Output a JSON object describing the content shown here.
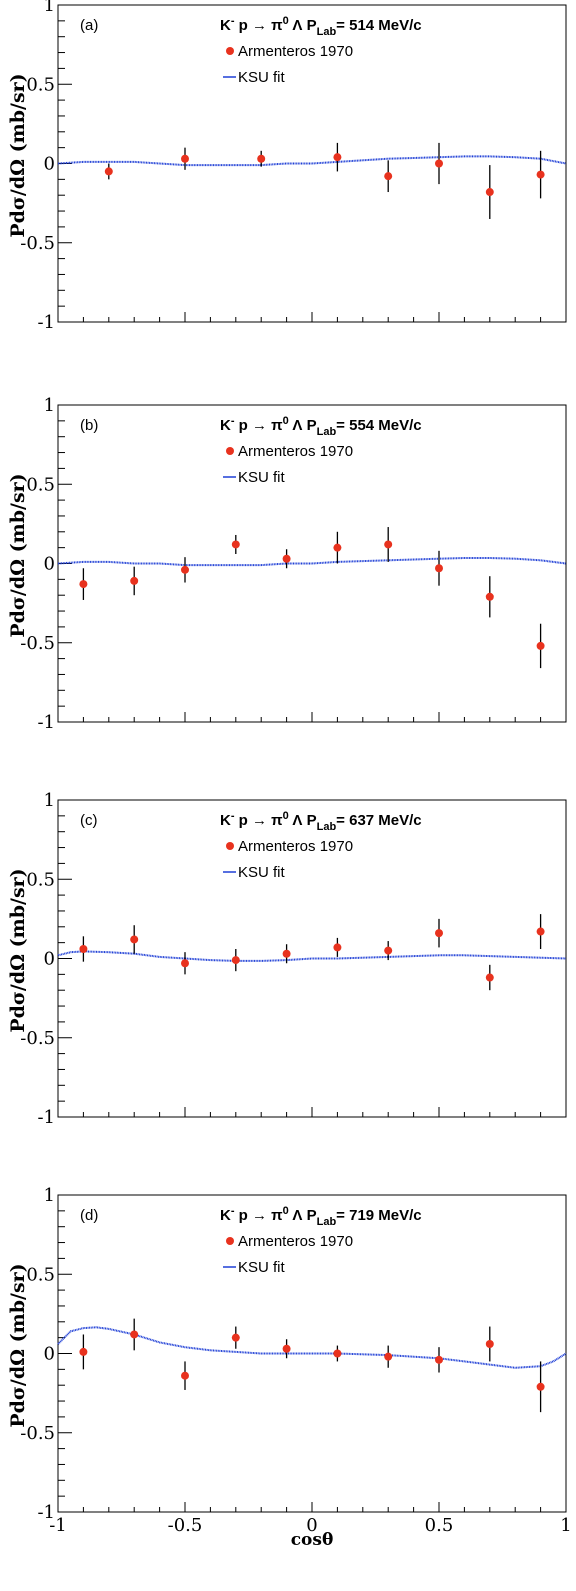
{
  "chart_data": [
    {
      "type": "scatter",
      "panel_label": "(a)",
      "reaction": {
        "lhs": "K",
        "sup": "-",
        "rest": " p → π",
        "pi_sup": "0",
        "tail": " Λ",
        "plab_label": "P",
        "plab_sub": "Lab",
        "plab_value": "= 514 MeV/c"
      },
      "ylabel": "Pdσ/dΩ (mb/sr)",
      "xlabel": "",
      "xlim": [
        -1,
        1
      ],
      "ylim": [
        -1,
        1
      ],
      "yticks": [
        {
          "v": -1,
          "label": "-1"
        },
        {
          "v": -0.5,
          "label": "-0.5"
        },
        {
          "v": 0,
          "label": "0"
        },
        {
          "v": 0.5,
          "label": "0.5"
        },
        {
          "v": 1,
          "label": "1"
        }
      ],
      "xticks": [],
      "legend": [
        {
          "name": "Armenteros 1970",
          "kind": "marker",
          "color": "#e8321e"
        },
        {
          "name": "KSU fit",
          "kind": "line",
          "color": "#1f3fd6"
        }
      ],
      "series": [
        {
          "name": "Armenteros 1970",
          "color": "#e8321e",
          "points": [
            {
              "x": -0.8,
              "y": -0.05,
              "err": 0.05
            },
            {
              "x": -0.5,
              "y": 0.03,
              "err": 0.07
            },
            {
              "x": -0.2,
              "y": 0.03,
              "err": 0.05
            },
            {
              "x": 0.1,
              "y": 0.04,
              "err": 0.09
            },
            {
              "x": 0.3,
              "y": -0.08,
              "err": 0.1
            },
            {
              "x": 0.5,
              "y": 0.0,
              "err": 0.13
            },
            {
              "x": 0.7,
              "y": -0.18,
              "err": 0.17
            },
            {
              "x": 0.9,
              "y": -0.07,
              "err": 0.15
            }
          ]
        },
        {
          "name": "KSU fit",
          "color": "#1f3fd6",
          "curve": [
            {
              "x": -1.0,
              "y": 0.0
            },
            {
              "x": -0.9,
              "y": 0.01
            },
            {
              "x": -0.8,
              "y": 0.01
            },
            {
              "x": -0.7,
              "y": 0.01
            },
            {
              "x": -0.6,
              "y": 0.0
            },
            {
              "x": -0.5,
              "y": -0.01
            },
            {
              "x": -0.4,
              "y": -0.01
            },
            {
              "x": -0.3,
              "y": -0.01
            },
            {
              "x": -0.2,
              "y": -0.01
            },
            {
              "x": -0.1,
              "y": 0.0
            },
            {
              "x": 0.0,
              "y": 0.0
            },
            {
              "x": 0.1,
              "y": 0.01
            },
            {
              "x": 0.2,
              "y": 0.02
            },
            {
              "x": 0.3,
              "y": 0.03
            },
            {
              "x": 0.4,
              "y": 0.035
            },
            {
              "x": 0.5,
              "y": 0.04
            },
            {
              "x": 0.6,
              "y": 0.045
            },
            {
              "x": 0.7,
              "y": 0.045
            },
            {
              "x": 0.8,
              "y": 0.04
            },
            {
              "x": 0.9,
              "y": 0.03
            },
            {
              "x": 1.0,
              "y": 0.0
            }
          ]
        }
      ]
    },
    {
      "type": "scatter",
      "panel_label": "(b)",
      "reaction": {
        "lhs": "K",
        "sup": "-",
        "rest": " p → π",
        "pi_sup": "0",
        "tail": " Λ",
        "plab_label": "P",
        "plab_sub": "Lab",
        "plab_value": "= 554 MeV/c"
      },
      "ylabel": "Pdσ/dΩ (mb/sr)",
      "xlabel": "",
      "xlim": [
        -1,
        1
      ],
      "ylim": [
        -1,
        1
      ],
      "yticks": [
        {
          "v": -1,
          "label": "-1"
        },
        {
          "v": -0.5,
          "label": "-0.5"
        },
        {
          "v": 0,
          "label": "0"
        },
        {
          "v": 0.5,
          "label": "0.5"
        },
        {
          "v": 1,
          "label": "1"
        }
      ],
      "xticks": [],
      "legend": [
        {
          "name": "Armenteros 1970",
          "kind": "marker",
          "color": "#e8321e"
        },
        {
          "name": "KSU fit",
          "kind": "line",
          "color": "#1f3fd6"
        }
      ],
      "series": [
        {
          "name": "Armenteros 1970",
          "color": "#e8321e",
          "points": [
            {
              "x": -0.9,
              "y": -0.13,
              "err": 0.1
            },
            {
              "x": -0.7,
              "y": -0.11,
              "err": 0.09
            },
            {
              "x": -0.5,
              "y": -0.04,
              "err": 0.08
            },
            {
              "x": -0.3,
              "y": 0.12,
              "err": 0.06
            },
            {
              "x": -0.1,
              "y": 0.03,
              "err": 0.06
            },
            {
              "x": 0.1,
              "y": 0.1,
              "err": 0.1
            },
            {
              "x": 0.3,
              "y": 0.12,
              "err": 0.11
            },
            {
              "x": 0.5,
              "y": -0.03,
              "err": 0.11
            },
            {
              "x": 0.7,
              "y": -0.21,
              "err": 0.13
            },
            {
              "x": 0.9,
              "y": -0.52,
              "err": 0.14
            }
          ]
        },
        {
          "name": "KSU fit",
          "color": "#1f3fd6",
          "curve": [
            {
              "x": -1.0,
              "y": 0.0
            },
            {
              "x": -0.9,
              "y": 0.01
            },
            {
              "x": -0.8,
              "y": 0.01
            },
            {
              "x": -0.7,
              "y": 0.0
            },
            {
              "x": -0.6,
              "y": 0.0
            },
            {
              "x": -0.5,
              "y": -0.01
            },
            {
              "x": -0.4,
              "y": -0.01
            },
            {
              "x": -0.3,
              "y": -0.01
            },
            {
              "x": -0.2,
              "y": -0.01
            },
            {
              "x": -0.1,
              "y": 0.0
            },
            {
              "x": 0.0,
              "y": 0.0
            },
            {
              "x": 0.1,
              "y": 0.01
            },
            {
              "x": 0.2,
              "y": 0.015
            },
            {
              "x": 0.3,
              "y": 0.02
            },
            {
              "x": 0.4,
              "y": 0.025
            },
            {
              "x": 0.5,
              "y": 0.03
            },
            {
              "x": 0.6,
              "y": 0.035
            },
            {
              "x": 0.7,
              "y": 0.035
            },
            {
              "x": 0.8,
              "y": 0.03
            },
            {
              "x": 0.9,
              "y": 0.02
            },
            {
              "x": 1.0,
              "y": 0.0
            }
          ]
        }
      ]
    },
    {
      "type": "scatter",
      "panel_label": "(c)",
      "reaction": {
        "lhs": "K",
        "sup": "-",
        "rest": " p → π",
        "pi_sup": "0",
        "tail": " Λ",
        "plab_label": "P",
        "plab_sub": "Lab",
        "plab_value": "= 637 MeV/c"
      },
      "ylabel": "Pdσ/dΩ (mb/sr)",
      "xlabel": "",
      "xlim": [
        -1,
        1
      ],
      "ylim": [
        -1,
        1
      ],
      "yticks": [
        {
          "v": -1,
          "label": "-1"
        },
        {
          "v": -0.5,
          "label": "-0.5"
        },
        {
          "v": 0,
          "label": "0"
        },
        {
          "v": 0.5,
          "label": "0.5"
        },
        {
          "v": 1,
          "label": "1"
        }
      ],
      "xticks": [],
      "legend": [
        {
          "name": "Armenteros 1970",
          "kind": "marker",
          "color": "#e8321e"
        },
        {
          "name": "KSU fit",
          "kind": "line",
          "color": "#1f3fd6"
        }
      ],
      "series": [
        {
          "name": "Armenteros 1970",
          "color": "#e8321e",
          "points": [
            {
              "x": -0.9,
              "y": 0.06,
              "err": 0.08
            },
            {
              "x": -0.7,
              "y": 0.12,
              "err": 0.09
            },
            {
              "x": -0.5,
              "y": -0.03,
              "err": 0.07
            },
            {
              "x": -0.3,
              "y": -0.01,
              "err": 0.07
            },
            {
              "x": -0.1,
              "y": 0.03,
              "err": 0.06
            },
            {
              "x": 0.1,
              "y": 0.07,
              "err": 0.06
            },
            {
              "x": 0.3,
              "y": 0.05,
              "err": 0.06
            },
            {
              "x": 0.5,
              "y": 0.16,
              "err": 0.09
            },
            {
              "x": 0.7,
              "y": -0.12,
              "err": 0.08
            },
            {
              "x": 0.9,
              "y": 0.17,
              "err": 0.11
            }
          ]
        },
        {
          "name": "KSU fit",
          "color": "#1f3fd6",
          "curve": [
            {
              "x": -1.0,
              "y": 0.02
            },
            {
              "x": -0.95,
              "y": 0.04
            },
            {
              "x": -0.9,
              "y": 0.045
            },
            {
              "x": -0.8,
              "y": 0.04
            },
            {
              "x": -0.7,
              "y": 0.03
            },
            {
              "x": -0.6,
              "y": 0.01
            },
            {
              "x": -0.5,
              "y": 0.0
            },
            {
              "x": -0.4,
              "y": -0.01
            },
            {
              "x": -0.3,
              "y": -0.015
            },
            {
              "x": -0.2,
              "y": -0.015
            },
            {
              "x": -0.1,
              "y": -0.01
            },
            {
              "x": 0.0,
              "y": 0.0
            },
            {
              "x": 0.1,
              "y": 0.0
            },
            {
              "x": 0.2,
              "y": 0.005
            },
            {
              "x": 0.3,
              "y": 0.01
            },
            {
              "x": 0.4,
              "y": 0.015
            },
            {
              "x": 0.5,
              "y": 0.02
            },
            {
              "x": 0.6,
              "y": 0.02
            },
            {
              "x": 0.7,
              "y": 0.015
            },
            {
              "x": 0.8,
              "y": 0.01
            },
            {
              "x": 0.9,
              "y": 0.005
            },
            {
              "x": 1.0,
              "y": 0.0
            }
          ]
        }
      ]
    },
    {
      "type": "scatter",
      "panel_label": "(d)",
      "reaction": {
        "lhs": "K",
        "sup": "-",
        "rest": " p → π",
        "pi_sup": "0",
        "tail": " Λ",
        "plab_label": "P",
        "plab_sub": "Lab",
        "plab_value": "= 719 MeV/c"
      },
      "ylabel": "Pdσ/dΩ (mb/sr)",
      "xlabel": "cosθ",
      "xlim": [
        -1,
        1
      ],
      "ylim": [
        -1,
        1
      ],
      "yticks": [
        {
          "v": -1,
          "label": "-1"
        },
        {
          "v": -0.5,
          "label": "-0.5"
        },
        {
          "v": 0,
          "label": "0"
        },
        {
          "v": 0.5,
          "label": "0.5"
        },
        {
          "v": 1,
          "label": "1"
        }
      ],
      "xticks": [
        {
          "v": -1,
          "label": "-1"
        },
        {
          "v": -0.5,
          "label": "-0.5"
        },
        {
          "v": 0,
          "label": "0"
        },
        {
          "v": 0.5,
          "label": "0.5"
        },
        {
          "v": 1,
          "label": "1"
        }
      ],
      "legend": [
        {
          "name": "Armenteros 1970",
          "kind": "marker",
          "color": "#e8321e"
        },
        {
          "name": "KSU fit",
          "kind": "line",
          "color": "#1f3fd6"
        }
      ],
      "series": [
        {
          "name": "Armenteros 1970",
          "color": "#e8321e",
          "points": [
            {
              "x": -0.9,
              "y": 0.01,
              "err": 0.11
            },
            {
              "x": -0.7,
              "y": 0.12,
              "err": 0.1
            },
            {
              "x": -0.5,
              "y": -0.14,
              "err": 0.09
            },
            {
              "x": -0.3,
              "y": 0.1,
              "err": 0.07
            },
            {
              "x": -0.1,
              "y": 0.03,
              "err": 0.06
            },
            {
              "x": 0.1,
              "y": 0.0,
              "err": 0.05
            },
            {
              "x": 0.3,
              "y": -0.02,
              "err": 0.07
            },
            {
              "x": 0.5,
              "y": -0.04,
              "err": 0.08
            },
            {
              "x": 0.7,
              "y": 0.06,
              "err": 0.11
            },
            {
              "x": 0.9,
              "y": -0.21,
              "err": 0.16
            }
          ]
        },
        {
          "name": "KSU fit",
          "color": "#1f3fd6",
          "curve": [
            {
              "x": -1.0,
              "y": 0.06
            },
            {
              "x": -0.95,
              "y": 0.14
            },
            {
              "x": -0.9,
              "y": 0.16
            },
            {
              "x": -0.85,
              "y": 0.165
            },
            {
              "x": -0.8,
              "y": 0.155
            },
            {
              "x": -0.7,
              "y": 0.12
            },
            {
              "x": -0.6,
              "y": 0.07
            },
            {
              "x": -0.5,
              "y": 0.04
            },
            {
              "x": -0.4,
              "y": 0.02
            },
            {
              "x": -0.3,
              "y": 0.01
            },
            {
              "x": -0.2,
              "y": 0.0
            },
            {
              "x": -0.1,
              "y": 0.0
            },
            {
              "x": 0.0,
              "y": 0.0
            },
            {
              "x": 0.1,
              "y": 0.0
            },
            {
              "x": 0.2,
              "y": -0.005
            },
            {
              "x": 0.3,
              "y": -0.01
            },
            {
              "x": 0.4,
              "y": -0.02
            },
            {
              "x": 0.5,
              "y": -0.03
            },
            {
              "x": 0.6,
              "y": -0.05
            },
            {
              "x": 0.7,
              "y": -0.07
            },
            {
              "x": 0.8,
              "y": -0.09
            },
            {
              "x": 0.9,
              "y": -0.08
            },
            {
              "x": 0.95,
              "y": -0.05
            },
            {
              "x": 1.0,
              "y": 0.0
            }
          ]
        }
      ]
    }
  ]
}
